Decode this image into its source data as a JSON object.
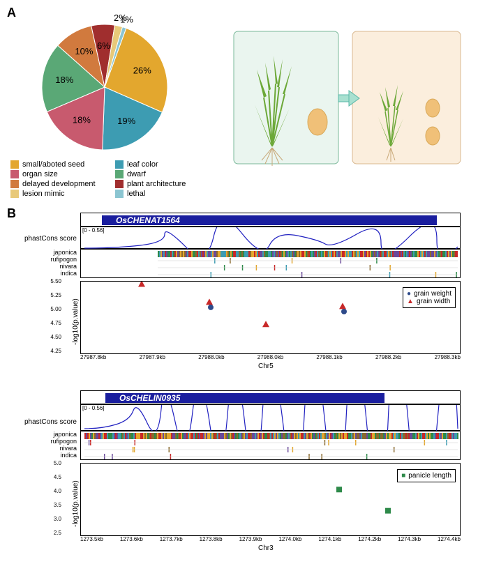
{
  "panel_labels": {
    "a": "A",
    "b": "B"
  },
  "pie": {
    "slices": [
      {
        "label": "small/aboted seed",
        "value": 26,
        "color": "#e3a72e",
        "text": "26%"
      },
      {
        "label": "leaf color",
        "value": 19,
        "color": "#3d9cb2",
        "text": "19%"
      },
      {
        "label": "organ size",
        "value": 18,
        "color": "#c85a6e",
        "text": "18%"
      },
      {
        "label": "dwarf",
        "value": 18,
        "color": "#5aa876",
        "text": "18%"
      },
      {
        "label": "delayed development",
        "value": 10,
        "color": "#d17a3e",
        "text": "10%"
      },
      {
        "label": "plant architecture",
        "value": 6,
        "color": "#a02e2e",
        "text": "6%"
      },
      {
        "label": "lesion mimic",
        "value": 2,
        "color": "#e8c979",
        "text": "2%"
      },
      {
        "label": "lethal",
        "value": 1,
        "color": "#8bc5d1",
        "text": "1%"
      }
    ],
    "legend_layout": [
      [
        "small/aboted seed",
        "leaf color"
      ],
      [
        "organ size",
        "dwarf"
      ],
      [
        "delayed development",
        "plant architecture"
      ],
      [
        "lesion mimic",
        "lethal"
      ]
    ]
  },
  "plant_panel": {
    "left_bg": "#eaf5ef",
    "right_bg": "#fbeedd",
    "arrow_color": "#5ab8a8",
    "seed_color": "#f0c078",
    "plant_color": "#6ca838"
  },
  "gene1": {
    "name": "OsCHENAT1564",
    "gene_color": "#1a1e9e",
    "phastcons_range": "[0 - 0.56]",
    "phastcons_label": "phastCons score",
    "species": [
      "japonica",
      "rufipogon",
      "nivara",
      "indica"
    ],
    "scatter": {
      "ylabel": "-log10(p.value)",
      "ylim": [
        4.25,
        5.5
      ],
      "yticks": [
        "4.25",
        "4.50",
        "4.75",
        "5.00",
        "5.25",
        "5.50"
      ],
      "xticks": [
        "27987.8kb",
        "27987.9kb",
        "27988.0kb",
        "27988.0kb",
        "27988.1kb",
        "27988.2kb",
        "27988.3kb"
      ],
      "xlabel": "Chr5",
      "legend": [
        {
          "label": "grain weight",
          "marker": "circle",
          "color": "#2e4a8a"
        },
        {
          "label": "grain width",
          "marker": "triangle",
          "color": "#c82828"
        }
      ],
      "points": [
        {
          "marker": "triangle",
          "x": 87,
          "y": 5.52,
          "color": "#c82828"
        },
        {
          "marker": "triangle",
          "x": 184,
          "y": 5.18,
          "color": "#c82828"
        },
        {
          "marker": "circle",
          "x": 186,
          "y": 5.08,
          "color": "#2e4a8a"
        },
        {
          "marker": "triangle",
          "x": 265,
          "y": 4.76,
          "color": "#c82828"
        },
        {
          "marker": "triangle",
          "x": 375,
          "y": 5.1,
          "color": "#c82828"
        },
        {
          "marker": "circle",
          "x": 377,
          "y": 5.0,
          "color": "#2e4a8a"
        }
      ]
    }
  },
  "gene2": {
    "name": "OsCHELIN0935",
    "gene_color": "#1a1e9e",
    "phastcons_range": "[0 - 0.56]",
    "phastcons_label": "phastCons score",
    "species": [
      "japonica",
      "rufipogon",
      "nivara",
      "indica"
    ],
    "scatter": {
      "ylabel": "-log10(p.value)",
      "ylim": [
        2.5,
        5.0
      ],
      "yticks": [
        "2.5",
        "3.0",
        "3.5",
        "4.0",
        "4.5",
        "5.0"
      ],
      "xticks": [
        "1273.5kb",
        "1273.6kb",
        "1273.7kb",
        "1273.8kb",
        "1273.9kb",
        "1274.0kb",
        "1274.1kb",
        "1274.2kb",
        "1274.3kb",
        "1274.4kb"
      ],
      "xlabel": "Chr3",
      "legend": [
        {
          "label": "panicle length",
          "marker": "square",
          "color": "#2e8a4a"
        }
      ],
      "points": [
        {
          "marker": "square",
          "x": 370,
          "y": 4.15,
          "color": "#2e8a4a"
        },
        {
          "marker": "square",
          "x": 440,
          "y": 3.35,
          "color": "#2e8a4a"
        }
      ]
    }
  }
}
